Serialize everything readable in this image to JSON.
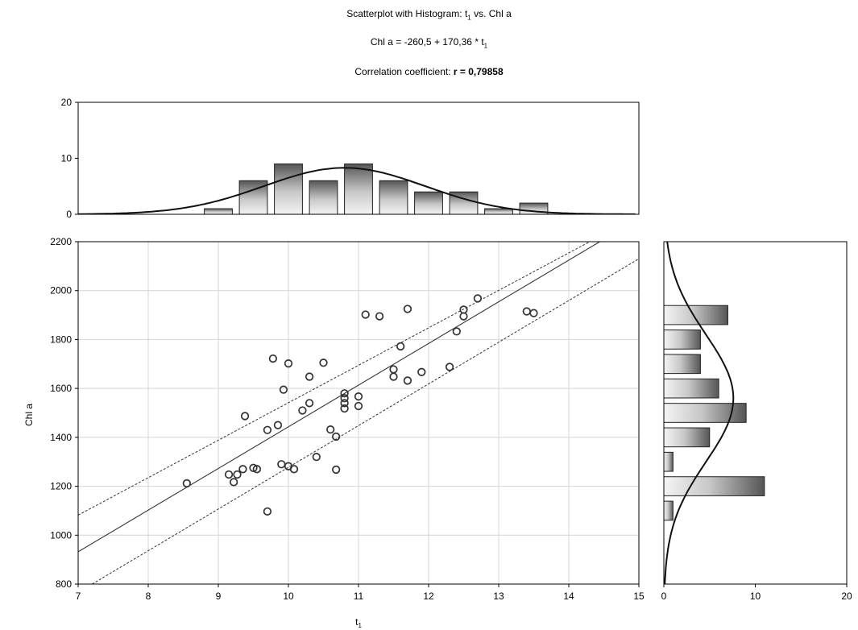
{
  "header": {
    "title": "Scatterplot with Histogram: t",
    "title_sub": "1",
    "title_rest": " vs. Chl a",
    "equation_main": "Chl a = -260,5 + 170,36 * t",
    "equation_sub": "1",
    "corr_label": "Correlation coefficient: ",
    "corr_r": "r = ",
    "corr_value": "0,79858"
  },
  "chart_data": {
    "type": "scatter",
    "xlabel": "t",
    "xlabel_sub": "1",
    "ylabel": "Chl a",
    "xlim": [
      7,
      15
    ],
    "ylim": [
      800,
      2200
    ],
    "x_ticks": [
      "7",
      "8",
      "9",
      "10",
      "11",
      "12",
      "13",
      "14",
      "15"
    ],
    "y_ticks": [
      "800",
      "1000",
      "1200",
      "1400",
      "1600",
      "1800",
      "2000",
      "2200"
    ],
    "grid": true,
    "regression": {
      "intercept": -260.5,
      "slope": 170.36
    },
    "confidence_band": {
      "upper": [
        [
          7,
          1082
        ],
        [
          14.3,
          2200
        ]
      ],
      "lower": [
        [
          7.2,
          800
        ],
        [
          15,
          2130
        ]
      ]
    },
    "points": [
      [
        8.55,
        1212
      ],
      [
        9.15,
        1248
      ],
      [
        9.22,
        1217
      ],
      [
        9.27,
        1248
      ],
      [
        9.35,
        1270
      ],
      [
        9.38,
        1487
      ],
      [
        9.5,
        1275
      ],
      [
        9.55,
        1270
      ],
      [
        9.7,
        1430
      ],
      [
        9.7,
        1097
      ],
      [
        9.78,
        1722
      ],
      [
        9.85,
        1450
      ],
      [
        9.9,
        1290
      ],
      [
        9.93,
        1595
      ],
      [
        10.0,
        1702
      ],
      [
        10.0,
        1282
      ],
      [
        10.08,
        1270
      ],
      [
        10.2,
        1510
      ],
      [
        10.3,
        1648
      ],
      [
        10.3,
        1540
      ],
      [
        10.4,
        1320
      ],
      [
        10.5,
        1705
      ],
      [
        10.6,
        1432
      ],
      [
        10.68,
        1268
      ],
      [
        10.68,
        1403
      ],
      [
        10.8,
        1580
      ],
      [
        10.8,
        1560
      ],
      [
        10.8,
        1540
      ],
      [
        10.8,
        1518
      ],
      [
        11.0,
        1567
      ],
      [
        11.0,
        1528
      ],
      [
        11.1,
        1902
      ],
      [
        11.3,
        1895
      ],
      [
        11.5,
        1678
      ],
      [
        11.5,
        1648
      ],
      [
        11.6,
        1772
      ],
      [
        11.7,
        1925
      ],
      [
        11.7,
        1632
      ],
      [
        11.9,
        1667
      ],
      [
        12.3,
        1688
      ],
      [
        12.4,
        1833
      ],
      [
        12.5,
        1922
      ],
      [
        12.5,
        1895
      ],
      [
        12.7,
        1968
      ],
      [
        13.4,
        1915
      ],
      [
        13.5,
        1908
      ]
    ],
    "top_histogram": {
      "ylim": [
        0,
        20
      ],
      "y_ticks": [
        "0",
        "10",
        "20"
      ],
      "bin_width": 0.5,
      "bins": [
        {
          "center": 9.0,
          "count": 1
        },
        {
          "center": 9.5,
          "count": 6
        },
        {
          "center": 10.0,
          "count": 9
        },
        {
          "center": 10.5,
          "count": 6
        },
        {
          "center": 11.0,
          "count": 9
        },
        {
          "center": 11.5,
          "count": 6
        },
        {
          "center": 12.0,
          "count": 4
        },
        {
          "center": 12.5,
          "count": 4
        },
        {
          "center": 13.0,
          "count": 1
        },
        {
          "center": 13.5,
          "count": 2
        }
      ],
      "normal_fit": {
        "mean": 10.8,
        "sd": 1.15,
        "peak": 8.3
      }
    },
    "right_histogram": {
      "xlim": [
        0,
        20
      ],
      "x_ticks": [
        "0",
        "10",
        "20"
      ],
      "bin_width": 100,
      "bins": [
        {
          "center": 1100,
          "count": 1
        },
        {
          "center": 1200,
          "count": 11
        },
        {
          "center": 1300,
          "count": 1
        },
        {
          "center": 1400,
          "count": 5
        },
        {
          "center": 1500,
          "count": 9
        },
        {
          "center": 1600,
          "count": 6
        },
        {
          "center": 1700,
          "count": 4
        },
        {
          "center": 1800,
          "count": 4
        },
        {
          "center": 1900,
          "count": 7
        }
      ],
      "normal_fit": {
        "mean": 1560,
        "sd": 260,
        "peak": 7.6
      }
    }
  }
}
